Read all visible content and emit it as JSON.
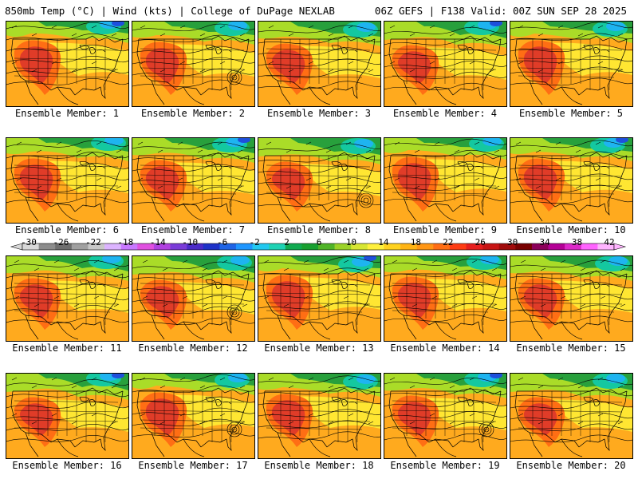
{
  "header": {
    "title_left": "850mb Temp (°C) | Wind (kts) | College of DuPage NEXLAB",
    "title_right": "06Z GEFS | F138 Valid: 00Z SUN SEP 28 2025"
  },
  "members": [
    {
      "label": "Ensemble Member: 1"
    },
    {
      "label": "Ensemble Member: 2"
    },
    {
      "label": "Ensemble Member: 3"
    },
    {
      "label": "Ensemble Member: 4"
    },
    {
      "label": "Ensemble Member: 5"
    },
    {
      "label": "Ensemble Member: 6"
    },
    {
      "label": "Ensemble Member: 7"
    },
    {
      "label": "Ensemble Member: 8"
    },
    {
      "label": "Ensemble Member: 9"
    },
    {
      "label": "Ensemble Member: 10"
    },
    {
      "label": "Ensemble Member: 11"
    },
    {
      "label": "Ensemble Member: 12"
    },
    {
      "label": "Ensemble Member: 13"
    },
    {
      "label": "Ensemble Member: 14"
    },
    {
      "label": "Ensemble Member: 15"
    },
    {
      "label": "Ensemble Member: 16"
    },
    {
      "label": "Ensemble Member: 17"
    },
    {
      "label": "Ensemble Member: 18"
    },
    {
      "label": "Ensemble Member: 19"
    },
    {
      "label": "Ensemble Member: 20"
    }
  ],
  "colorbar": {
    "tick_labels": [
      "-30",
      "-26",
      "-22",
      "-18",
      "-14",
      "-10",
      "-6",
      "-2",
      "2",
      "6",
      "10",
      "14",
      "18",
      "22",
      "26",
      "30",
      "34",
      "38",
      "42"
    ],
    "colors": [
      "#d8d8d8",
      "#8c8c8c",
      "#6e6e6e",
      "#a0a0a0",
      "#c8c8c8",
      "#dcb4ff",
      "#c878ff",
      "#e050e0",
      "#b040e0",
      "#7a3cd8",
      "#4b2bc8",
      "#1e32c8",
      "#1e64e6",
      "#1e96ff",
      "#22c8f0",
      "#1ed2b4",
      "#10aa50",
      "#18a030",
      "#50b428",
      "#9bd228",
      "#d7e632",
      "#fff03c",
      "#ffd21e",
      "#ffb414",
      "#ff9614",
      "#ff6e14",
      "#ff3c14",
      "#e61e1e",
      "#c81414",
      "#a00a0a",
      "#780000",
      "#8c005a",
      "#b40096",
      "#dc28c8",
      "#ff64ff",
      "#ffb4ff"
    ]
  },
  "map_palette": {
    "hot": "#e03c28",
    "warm": "#ff6e14",
    "orange": "#ffaa1e",
    "yellow": "#ffe632",
    "lime": "#aadc28",
    "green": "#28a03c",
    "teal": "#14c8a0",
    "cyan": "#1eb4f0",
    "blue": "#1e50dc",
    "land_lines": "#000000",
    "contour": "#000000"
  }
}
